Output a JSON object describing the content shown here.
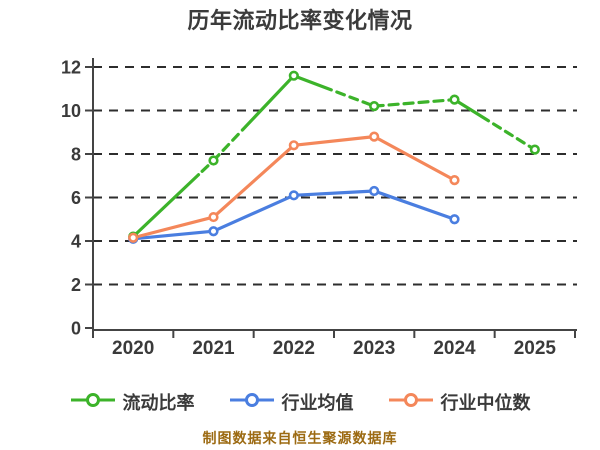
{
  "title": "历年流动比率变化情况",
  "footer": "制图数据来自恒生聚源数据库",
  "colors": {
    "background": "#ffffff",
    "title_text": "#3b3b3b",
    "axis_label_text": "#3a3a3a",
    "legend_text": "#3a3a3a",
    "footer_text": "#9c6a12",
    "gridline": "#2d2d2d",
    "axis_line": "#444444",
    "marker_fill": "#ffffff",
    "series_current_ratio": "#3cb32a",
    "series_industry_mean": "#4a7ee0",
    "series_industry_median": "#f4875a"
  },
  "chart_data": {
    "type": "line",
    "title": "历年流动比率变化情况",
    "x_labels": [
      "2020",
      "2021",
      "2022",
      "2023",
      "2024",
      "2025"
    ],
    "ylim": [
      0,
      12
    ],
    "yticks": [
      0,
      2,
      4,
      6,
      8,
      10,
      12
    ],
    "grid": "horizontal-dashed",
    "legend_position": "bottom",
    "marker": "circle-white-fill",
    "series": [
      {
        "name": "流动比率",
        "color": "#3cb32a",
        "values": [
          4.2,
          7.7,
          11.6,
          10.2,
          10.5,
          8.2
        ],
        "segment_styles": [
          "mostly-solid",
          "dash-then-solid",
          "solid-then-dash",
          "dashed",
          "solid-then-dash"
        ]
      },
      {
        "name": "行业均值",
        "color": "#4a7ee0",
        "values": [
          4.1,
          4.45,
          6.1,
          6.3,
          5.0,
          null
        ],
        "segment_styles": [
          "solid",
          "solid",
          "solid",
          "solid",
          "solid"
        ]
      },
      {
        "name": "行业中位数",
        "color": "#f4875a",
        "values": [
          4.15,
          5.1,
          8.4,
          8.8,
          6.8,
          null
        ],
        "segment_styles": [
          "solid",
          "solid",
          "solid",
          "solid",
          "solid"
        ]
      }
    ]
  },
  "legend": {
    "items": [
      {
        "label": "流动比率"
      },
      {
        "label": "行业均值"
      },
      {
        "label": "行业中位数"
      }
    ]
  }
}
